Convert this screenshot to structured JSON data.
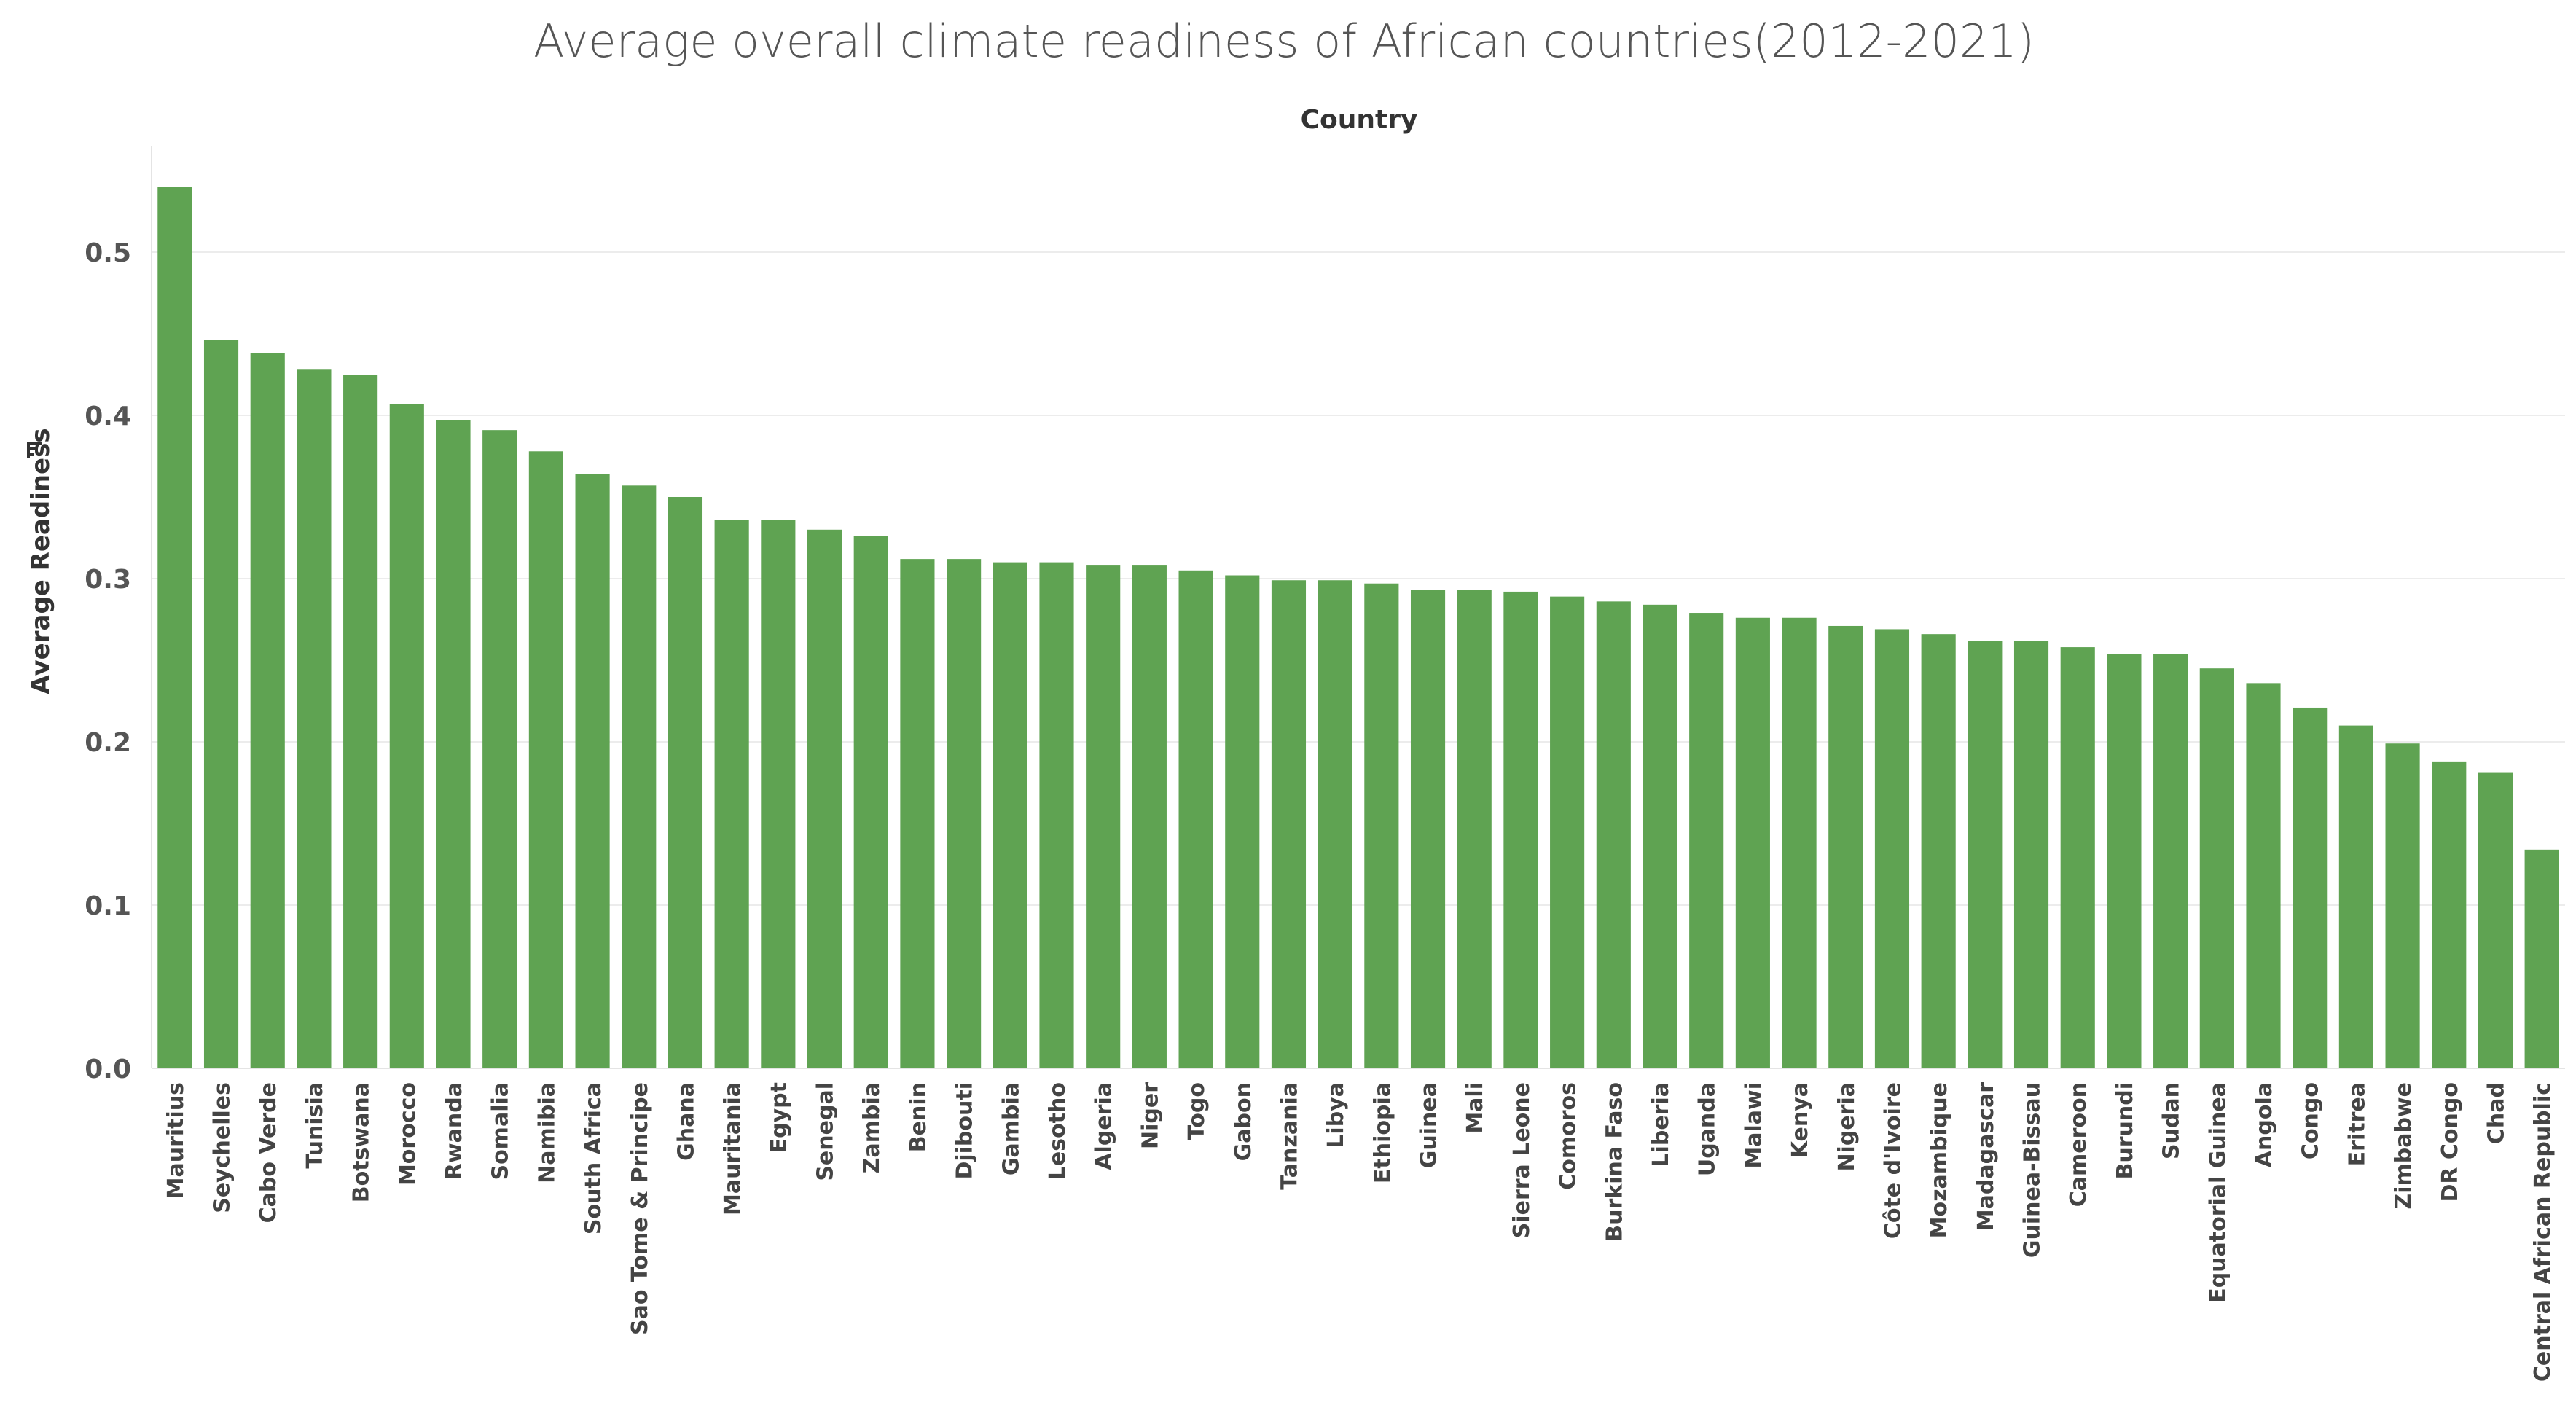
{
  "chart_data": {
    "type": "bar",
    "title": "Average overall climate readiness of African countries(2012-2021)",
    "column_header": "Country",
    "ylabel": "Average Readiness",
    "ylim": [
      0,
      0.55
    ],
    "yticks": [
      0.0,
      0.1,
      0.2,
      0.3,
      0.4,
      0.5
    ],
    "ytick_labels": [
      "0.0",
      "0.1",
      "0.2",
      "0.3",
      "0.4",
      "0.5"
    ],
    "grid": true,
    "bar_color": "#5fa352",
    "sort_icon": "sort-descending-icon",
    "categories": [
      "Mauritius",
      "Seychelles",
      "Cabo Verde",
      "Tunisia",
      "Botswana",
      "Morocco",
      "Rwanda",
      "Somalia",
      "Namibia",
      "South Africa",
      "Sao Tome & Principe",
      "Ghana",
      "Mauritania",
      "Egypt",
      "Senegal",
      "Zambia",
      "Benin",
      "Djibouti",
      "Gambia",
      "Lesotho",
      "Algeria",
      "Niger",
      "Togo",
      "Gabon",
      "Tanzania",
      "Libya",
      "Ethiopia",
      "Guinea",
      "Mali",
      "Sierra Leone",
      "Comoros",
      "Burkina Faso",
      "Liberia",
      "Uganda",
      "Malawi",
      "Kenya",
      "Nigeria",
      "Côte d'Ivoire",
      "Mozambique",
      "Madagascar",
      "Guinea-Bissau",
      "Cameroon",
      "Burundi",
      "Sudan",
      "Equatorial Guinea",
      "Angola",
      "Congo",
      "Eritrea",
      "Zimbabwe",
      "DR Congo",
      "Chad",
      "Central African Republic"
    ],
    "values": [
      0.54,
      0.446,
      0.438,
      0.428,
      0.425,
      0.407,
      0.397,
      0.391,
      0.378,
      0.364,
      0.357,
      0.35,
      0.336,
      0.336,
      0.33,
      0.326,
      0.312,
      0.312,
      0.31,
      0.31,
      0.308,
      0.308,
      0.305,
      0.302,
      0.299,
      0.299,
      0.297,
      0.293,
      0.293,
      0.292,
      0.289,
      0.286,
      0.284,
      0.279,
      0.276,
      0.276,
      0.271,
      0.269,
      0.266,
      0.262,
      0.262,
      0.258,
      0.254,
      0.254,
      0.245,
      0.236,
      0.221,
      0.21,
      0.199,
      0.188,
      0.181,
      0.134
    ]
  }
}
